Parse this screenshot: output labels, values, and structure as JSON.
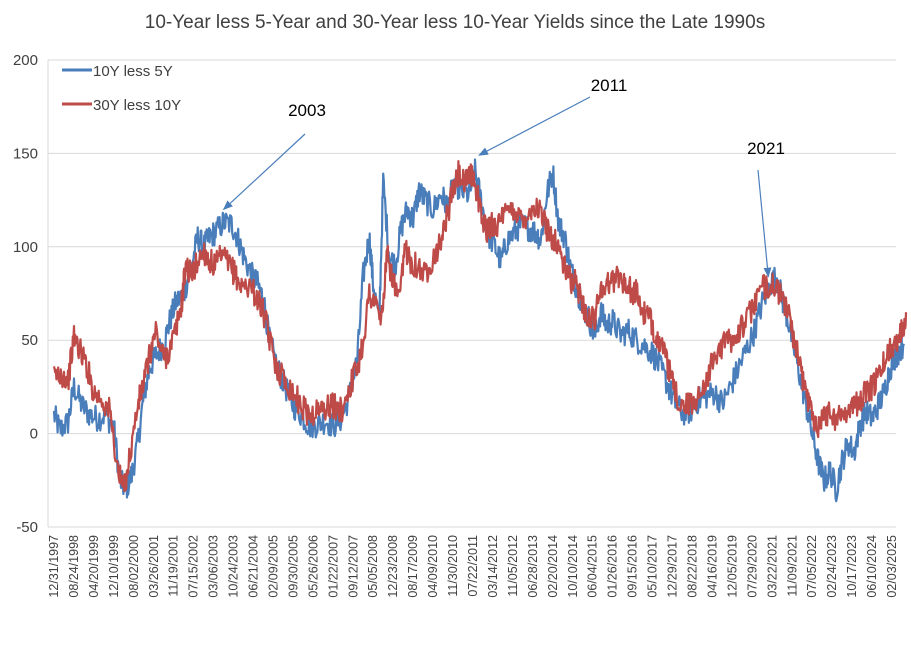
{
  "chart_data": {
    "type": "line",
    "title": "10-Year less 5-Year and 30-Year less 10-Year Yields since the Late 1990s",
    "xlabel": "",
    "ylabel": "",
    "ylim": [
      -50,
      200
    ],
    "yticks": [
      "200",
      "150",
      "100",
      "50",
      "0",
      "-50"
    ],
    "grid": true,
    "legend_position": "top-left",
    "categories": [
      "12/31/1997",
      "08/24/1998",
      "04/20/1999",
      "12/10/1999",
      "08/02/2000",
      "03/26/2001",
      "11/19/2001",
      "07/15/2002",
      "03/06/2003",
      "10/24/2003",
      "06/21/2004",
      "02/09/2005",
      "09/30/2005",
      "05/26/2006",
      "01/22/2007",
      "09/12/2007",
      "05/05/2008",
      "12/23/2008",
      "08/17/2009",
      "04/09/2010",
      "11/30/2010",
      "07/22/2011",
      "03/14/2012",
      "11/05/2012",
      "06/28/2013",
      "02/20/2014",
      "10/10/2014",
      "06/04/2015",
      "01/26/2016",
      "09/15/2016",
      "05/10/2017",
      "12/29/2017",
      "08/22/2018",
      "04/16/2019",
      "12/05/2019",
      "07/29/2020",
      "03/22/2021",
      "11/09/2021",
      "07/05/2022",
      "02/24/2023",
      "10/17/2023",
      "06/10/2024",
      "02/03/2025"
    ],
    "series": [
      {
        "name": "10Y less 5Y",
        "color": "#4a7ebb",
        "points": [
          [
            0,
            10
          ],
          [
            0.3,
            2
          ],
          [
            0.7,
            6
          ],
          [
            1,
            25
          ],
          [
            1.4,
            15
          ],
          [
            1.8,
            10
          ],
          [
            2.2,
            8
          ],
          [
            2.6,
            10
          ],
          [
            3,
            3
          ],
          [
            3.3,
            -25
          ],
          [
            3.6,
            -30
          ],
          [
            3.9,
            -22
          ],
          [
            4.2,
            -5
          ],
          [
            4.5,
            20
          ],
          [
            4.8,
            35
          ],
          [
            5.1,
            42
          ],
          [
            5.5,
            48
          ],
          [
            5.8,
            60
          ],
          [
            6.1,
            70
          ],
          [
            6.5,
            75
          ],
          [
            6.9,
            90
          ],
          [
            7.2,
            105
          ],
          [
            7.5,
            100
          ],
          [
            7.8,
            105
          ],
          [
            8.1,
            108
          ],
          [
            8.5,
            113
          ],
          [
            8.9,
            112
          ],
          [
            9.2,
            105
          ],
          [
            9.5,
            95
          ],
          [
            9.9,
            85
          ],
          [
            10.2,
            80
          ],
          [
            10.5,
            72
          ],
          [
            10.8,
            50
          ],
          [
            11.2,
            35
          ],
          [
            11.6,
            25
          ],
          [
            12,
            15
          ],
          [
            12.4,
            10
          ],
          [
            12.8,
            4
          ],
          [
            13.2,
            5
          ],
          [
            13.6,
            7
          ],
          [
            14,
            4
          ],
          [
            14.4,
            8
          ],
          [
            14.8,
            20
          ],
          [
            15.2,
            40
          ],
          [
            15.5,
            85
          ],
          [
            15.8,
            105
          ],
          [
            16,
            80
          ],
          [
            16.3,
            60
          ],
          [
            16.5,
            135
          ],
          [
            16.8,
            95
          ],
          [
            17.1,
            90
          ],
          [
            17.4,
            110
          ],
          [
            17.7,
            120
          ],
          [
            18,
            115
          ],
          [
            18.3,
            130
          ],
          [
            18.6,
            125
          ],
          [
            19,
            120
          ],
          [
            19.4,
            128
          ],
          [
            19.7,
            122
          ],
          [
            20.1,
            135
          ],
          [
            20.4,
            130
          ],
          [
            20.8,
            128
          ],
          [
            21.1,
            140
          ],
          [
            21.4,
            125
          ],
          [
            21.7,
            108
          ],
          [
            22.1,
            100
          ],
          [
            22.4,
            92
          ],
          [
            22.7,
            103
          ],
          [
            23.1,
            108
          ],
          [
            23.4,
            112
          ],
          [
            23.8,
            110
          ],
          [
            24.1,
            108
          ],
          [
            24.4,
            104
          ],
          [
            24.7,
            128
          ],
          [
            25,
            140
          ],
          [
            25.3,
            112
          ],
          [
            25.6,
            105
          ],
          [
            25.9,
            88
          ],
          [
            26.2,
            78
          ],
          [
            26.5,
            68
          ],
          [
            26.8,
            62
          ],
          [
            27.1,
            52
          ],
          [
            27.4,
            65
          ],
          [
            27.7,
            58
          ],
          [
            28,
            60
          ],
          [
            28.4,
            53
          ],
          [
            28.8,
            55
          ],
          [
            29.2,
            50
          ],
          [
            29.6,
            47
          ],
          [
            30,
            43
          ],
          [
            30.4,
            35
          ],
          [
            30.8,
            25
          ],
          [
            31.1,
            17
          ],
          [
            31.5,
            11
          ],
          [
            31.9,
            12
          ],
          [
            32.3,
            18
          ],
          [
            32.7,
            20
          ],
          [
            33.1,
            22
          ],
          [
            33.5,
            16
          ],
          [
            33.9,
            25
          ],
          [
            34.3,
            35
          ],
          [
            34.7,
            45
          ],
          [
            35.1,
            55
          ],
          [
            35.5,
            70
          ],
          [
            35.9,
            80
          ],
          [
            36.2,
            84
          ],
          [
            36.5,
            72
          ],
          [
            36.8,
            60
          ],
          [
            37.1,
            45
          ],
          [
            37.4,
            30
          ],
          [
            37.7,
            15
          ],
          [
            38,
            0
          ],
          [
            38.3,
            -15
          ],
          [
            38.6,
            -25
          ],
          [
            38.9,
            -20
          ],
          [
            39.2,
            -30
          ],
          [
            39.5,
            -15
          ],
          [
            39.8,
            -5
          ],
          [
            40.1,
            -10
          ],
          [
            40.4,
            5
          ],
          [
            40.7,
            12
          ],
          [
            41,
            8
          ],
          [
            41.3,
            15
          ],
          [
            41.6,
            22
          ],
          [
            41.9,
            35
          ],
          [
            42.2,
            42
          ],
          [
            42.6,
            48
          ]
        ]
      },
      {
        "name": "30Y less 10Y",
        "color": "#be4b48",
        "points": [
          [
            0,
            30
          ],
          [
            0.3,
            33
          ],
          [
            0.7,
            28
          ],
          [
            1,
            52
          ],
          [
            1.3,
            45
          ],
          [
            1.6,
            38
          ],
          [
            2,
            22
          ],
          [
            2.4,
            18
          ],
          [
            2.8,
            12
          ],
          [
            3.2,
            -20
          ],
          [
            3.5,
            -30
          ],
          [
            3.8,
            -12
          ],
          [
            4.2,
            15
          ],
          [
            4.5,
            28
          ],
          [
            4.8,
            42
          ],
          [
            5.1,
            55
          ],
          [
            5.5,
            40
          ],
          [
            5.8,
            45
          ],
          [
            6.1,
            55
          ],
          [
            6.4,
            70
          ],
          [
            6.6,
            90
          ],
          [
            6.9,
            85
          ],
          [
            7.2,
            92
          ],
          [
            7.5,
            98
          ],
          [
            7.8,
            92
          ],
          [
            8.1,
            90
          ],
          [
            8.4,
            95
          ],
          [
            8.8,
            90
          ],
          [
            9.1,
            85
          ],
          [
            9.4,
            78
          ],
          [
            9.8,
            80
          ],
          [
            10.2,
            72
          ],
          [
            10.5,
            65
          ],
          [
            10.8,
            50
          ],
          [
            11.2,
            35
          ],
          [
            11.6,
            28
          ],
          [
            12,
            22
          ],
          [
            12.4,
            15
          ],
          [
            12.8,
            10
          ],
          [
            13.2,
            12
          ],
          [
            13.6,
            14
          ],
          [
            14,
            15
          ],
          [
            14.4,
            12
          ],
          [
            14.8,
            25
          ],
          [
            15.2,
            35
          ],
          [
            15.5,
            50
          ],
          [
            15.8,
            75
          ],
          [
            16.1,
            70
          ],
          [
            16.4,
            60
          ],
          [
            16.7,
            95
          ],
          [
            17,
            82
          ],
          [
            17.3,
            70
          ],
          [
            17.6,
            100
          ],
          [
            17.9,
            92
          ],
          [
            18.2,
            90
          ],
          [
            18.6,
            85
          ],
          [
            19,
            95
          ],
          [
            19.3,
            100
          ],
          [
            19.6,
            112
          ],
          [
            20,
            130
          ],
          [
            20.3,
            140
          ],
          [
            20.6,
            132
          ],
          [
            20.8,
            140
          ],
          [
            21.1,
            135
          ],
          [
            21.4,
            118
          ],
          [
            21.7,
            108
          ],
          [
            22,
            113
          ],
          [
            22.3,
            112
          ],
          [
            22.7,
            118
          ],
          [
            23.1,
            120
          ],
          [
            23.4,
            115
          ],
          [
            23.8,
            118
          ],
          [
            24.1,
            122
          ],
          [
            24.4,
            118
          ],
          [
            24.7,
            110
          ],
          [
            25,
            105
          ],
          [
            25.3,
            100
          ],
          [
            25.6,
            88
          ],
          [
            25.9,
            82
          ],
          [
            26.2,
            80
          ],
          [
            26.5,
            70
          ],
          [
            26.8,
            60
          ],
          [
            27.1,
            62
          ],
          [
            27.4,
            78
          ],
          [
            27.7,
            80
          ],
          [
            28,
            82
          ],
          [
            28.3,
            85
          ],
          [
            28.6,
            80
          ],
          [
            28.9,
            77
          ],
          [
            29.2,
            75
          ],
          [
            29.5,
            65
          ],
          [
            29.8,
            62
          ],
          [
            30.1,
            55
          ],
          [
            30.4,
            48
          ],
          [
            30.8,
            35
          ],
          [
            31.1,
            22
          ],
          [
            31.5,
            15
          ],
          [
            31.9,
            15
          ],
          [
            32.3,
            20
          ],
          [
            32.7,
            30
          ],
          [
            33.1,
            40
          ],
          [
            33.5,
            48
          ],
          [
            33.9,
            50
          ],
          [
            34.3,
            55
          ],
          [
            34.7,
            60
          ],
          [
            35.1,
            70
          ],
          [
            35.5,
            78
          ],
          [
            35.9,
            80
          ],
          [
            36.2,
            78
          ],
          [
            36.5,
            72
          ],
          [
            36.8,
            65
          ],
          [
            37.1,
            50
          ],
          [
            37.4,
            35
          ],
          [
            37.7,
            22
          ],
          [
            38,
            10
          ],
          [
            38.3,
            5
          ],
          [
            38.6,
            10
          ],
          [
            38.9,
            12
          ],
          [
            39.2,
            8
          ],
          [
            39.5,
            10
          ],
          [
            39.8,
            14
          ],
          [
            40.1,
            15
          ],
          [
            40.4,
            18
          ],
          [
            40.7,
            22
          ],
          [
            41,
            25
          ],
          [
            41.3,
            30
          ],
          [
            41.6,
            38
          ],
          [
            41.9,
            45
          ],
          [
            42.2,
            50
          ],
          [
            42.5,
            55
          ],
          [
            42.7,
            65
          ]
        ]
      }
    ],
    "annotations": [
      {
        "label": "2003",
        "target_x": 8.5,
        "target_y": 120
      },
      {
        "label": "2011",
        "target_x": 21.3,
        "target_y": 149
      },
      {
        "label": "2021",
        "target_x": 35.8,
        "target_y": 84
      }
    ]
  }
}
